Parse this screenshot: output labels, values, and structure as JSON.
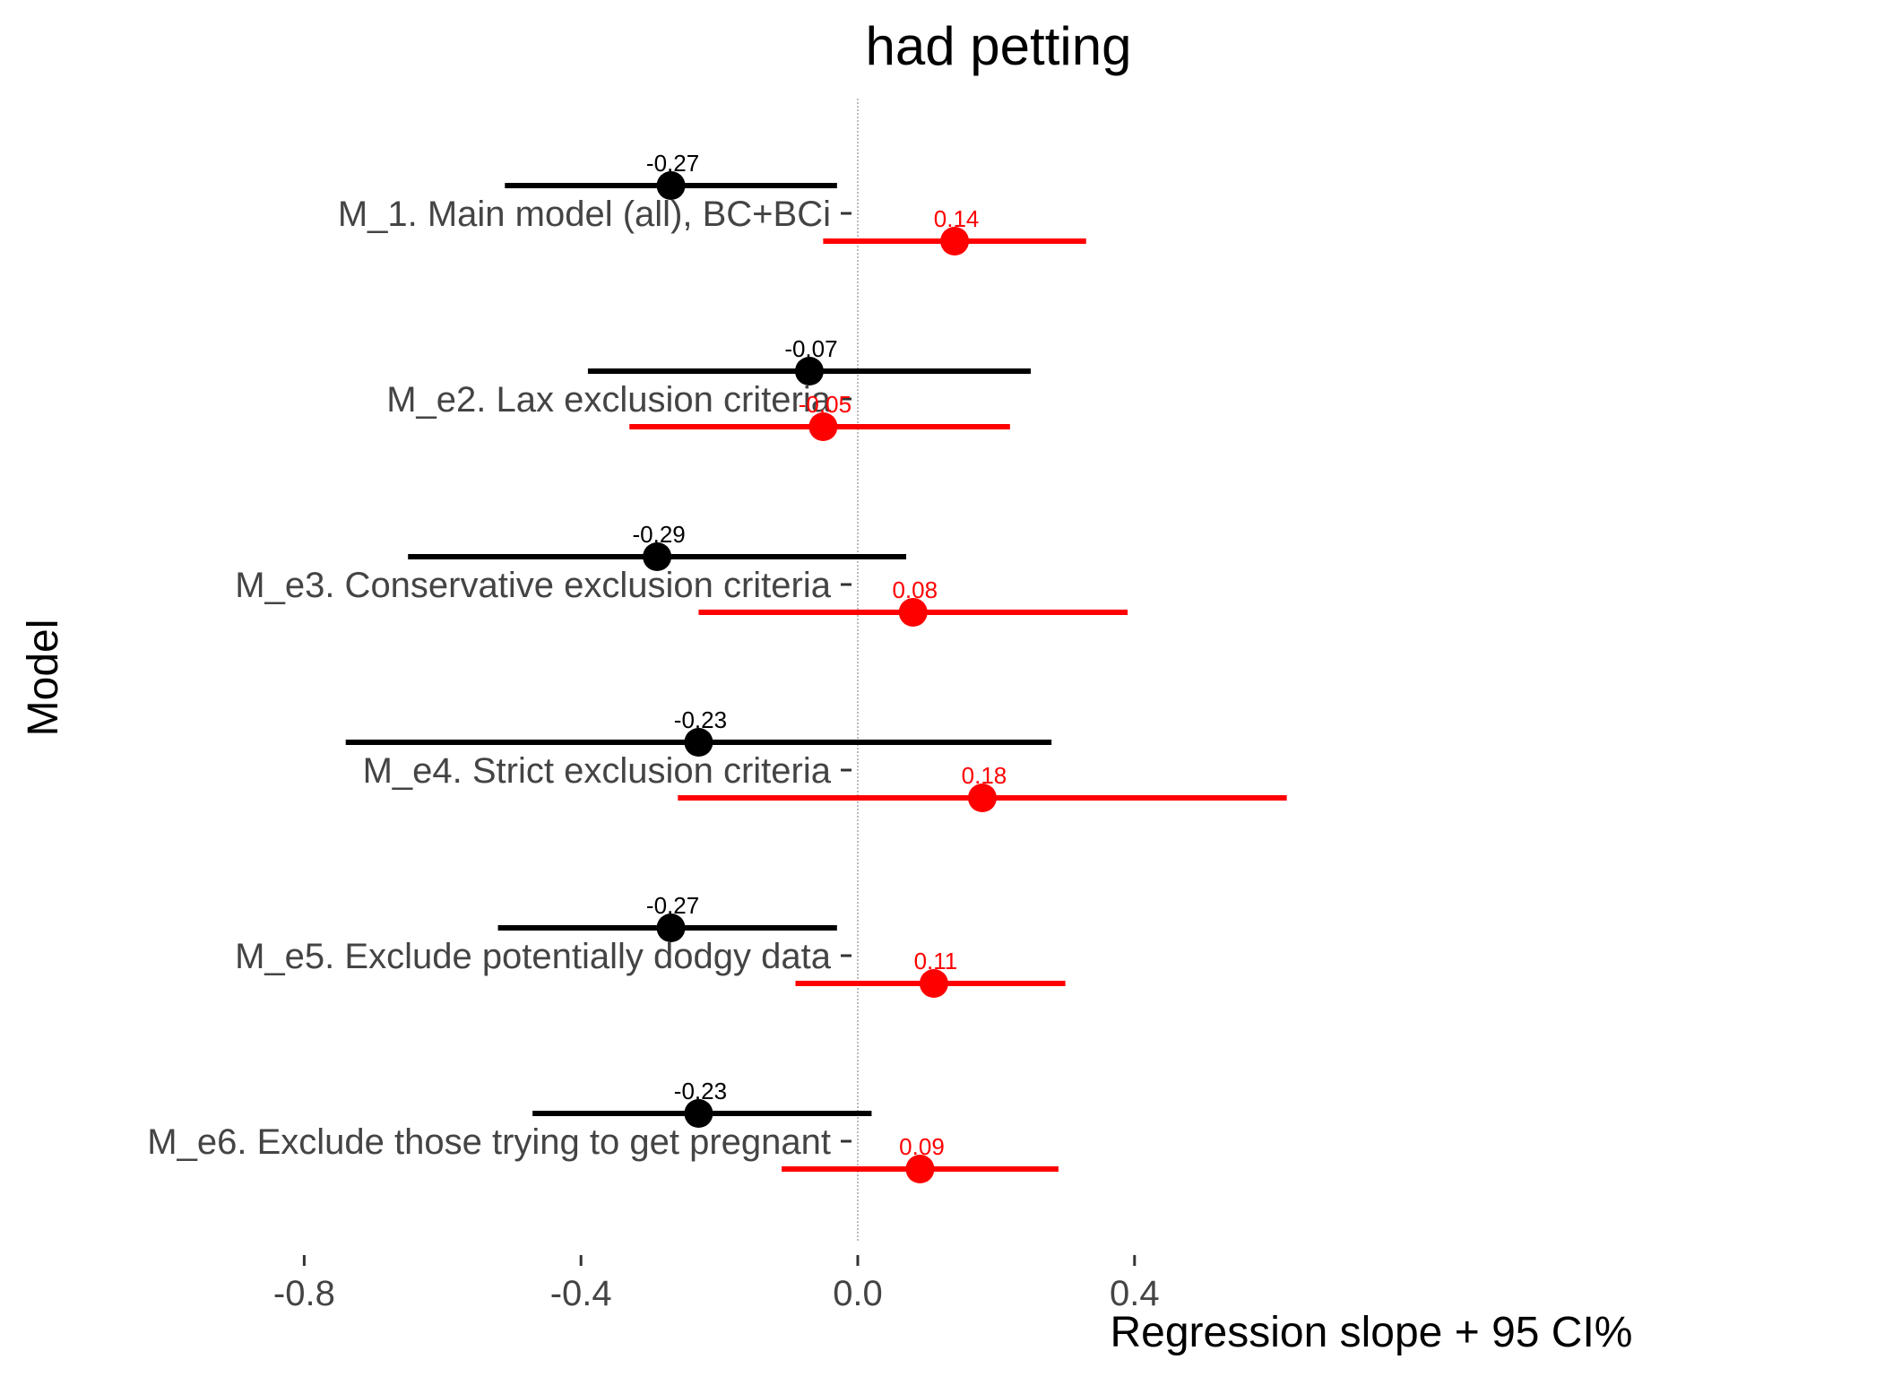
{
  "chart_data": {
    "type": "scatter",
    "subtype": "forest-plot",
    "title": "had petting",
    "xlabel": "Regression slope + 95 CI%",
    "ylabel": "Model",
    "xlim": [
      -0.8,
      0.65
    ],
    "x_ticks": [
      -0.8,
      -0.4,
      0.0,
      0.4
    ],
    "x_tick_labels": [
      "-0.8",
      "-0.4",
      "0.0",
      "0.4"
    ],
    "reference_line": 0.0,
    "grid": false,
    "legend": "none",
    "series_colors": [
      "#000000",
      "#ff0000"
    ],
    "categories": [
      "M_1. Main model (all), BC+BCi",
      "M_e2. Lax exclusion criteria",
      "M_e3. Conservative exclusion criteria",
      "M_e4. Strict exclusion criteria",
      "M_e5. Exclude potentially dodgy data",
      "M_e6. Exclude those trying to get pregnant"
    ],
    "series": [
      {
        "color": "#000000",
        "values": [
          -0.27,
          -0.07,
          -0.29,
          -0.23,
          -0.27,
          -0.23
        ],
        "labels": [
          "-0.27",
          "-0.07",
          "-0.29",
          "-0.23",
          "-0.27",
          "-0.23"
        ],
        "ci_low": [
          -0.51,
          -0.39,
          -0.65,
          -0.74,
          -0.52,
          -0.47
        ],
        "ci_high": [
          -0.03,
          0.25,
          0.07,
          0.28,
          -0.03,
          0.02
        ]
      },
      {
        "color": "#ff0000",
        "values": [
          0.14,
          -0.05,
          0.08,
          0.18,
          0.11,
          0.09
        ],
        "labels": [
          "0.14",
          "-0.05",
          "0.08",
          "0.18",
          "0.11",
          "0.09"
        ],
        "ci_low": [
          -0.05,
          -0.33,
          -0.23,
          -0.26,
          -0.09,
          -0.11
        ],
        "ci_high": [
          0.33,
          0.22,
          0.39,
          0.62,
          0.3,
          0.29
        ]
      }
    ]
  }
}
